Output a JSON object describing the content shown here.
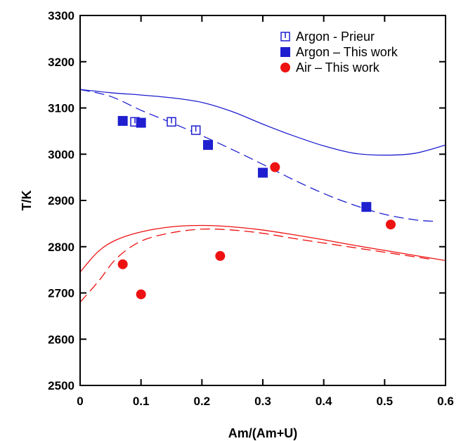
{
  "chart_data": {
    "type": "scatter",
    "xlabel": "Am/(Am+U)",
    "ylabel": "T/K",
    "xlim": [
      0,
      0.6
    ],
    "ylim": [
      2500,
      3300
    ],
    "x_ticks": [
      "0",
      "0.1",
      "0.2",
      "0.3",
      "0.4",
      "0.5",
      "0.6"
    ],
    "y_ticks": [
      "2500",
      "2600",
      "2700",
      "2800",
      "2900",
      "3000",
      "3100",
      "3200",
      "3300"
    ],
    "grid": false,
    "legend_position": "top-right",
    "colors": {
      "blue": "#1f1fd0",
      "red": "#ee1111",
      "axis": "#000000"
    },
    "series": [
      {
        "name": "Argon - Prieur",
        "marker": "open-square",
        "color": "#1f1fd0",
        "x": [
          0.09,
          0.15,
          0.19
        ],
        "y": [
          3070,
          3070,
          3052
        ]
      },
      {
        "name": "Argon – This work",
        "marker": "filled-square",
        "color": "#1f1fd0",
        "x": [
          0.07,
          0.1,
          0.21,
          0.3,
          0.47
        ],
        "y": [
          3072,
          3068,
          3020,
          2960,
          2886
        ]
      },
      {
        "name": "Air – This work",
        "marker": "filled-circle",
        "color": "#ee1111",
        "x": [
          0.07,
          0.1,
          0.23,
          0.32,
          0.51
        ],
        "y": [
          2762,
          2697,
          2780,
          2972,
          2848
        ]
      }
    ],
    "curves": [
      {
        "style": "solid",
        "color": "#1f1fd0",
        "x": [
          0,
          0.05,
          0.1,
          0.15,
          0.2,
          0.25,
          0.3,
          0.35,
          0.4,
          0.45,
          0.5,
          0.55,
          0.6
        ],
        "y": [
          3140,
          3133,
          3128,
          3122,
          3112,
          3092,
          3065,
          3040,
          3018,
          3002,
          2998,
          3002,
          3020
        ]
      },
      {
        "style": "dashed",
        "color": "#1f1fd0",
        "x": [
          0,
          0.05,
          0.1,
          0.15,
          0.2,
          0.25,
          0.3,
          0.35,
          0.4,
          0.45,
          0.5,
          0.55,
          0.58
        ],
        "y": [
          3140,
          3125,
          3095,
          3068,
          3040,
          3010,
          2978,
          2945,
          2915,
          2890,
          2870,
          2858,
          2855
        ]
      },
      {
        "style": "solid",
        "color": "#ee1111",
        "x": [
          0,
          0.03,
          0.06,
          0.1,
          0.15,
          0.2,
          0.25,
          0.3,
          0.35,
          0.4,
          0.45,
          0.5,
          0.55,
          0.6
        ],
        "y": [
          2745,
          2790,
          2815,
          2832,
          2843,
          2846,
          2843,
          2836,
          2826,
          2815,
          2803,
          2792,
          2781,
          2770
        ]
      },
      {
        "style": "dashed",
        "color": "#ee1111",
        "x": [
          0,
          0.03,
          0.06,
          0.1,
          0.15,
          0.2,
          0.25,
          0.3,
          0.35,
          0.4,
          0.45,
          0.5,
          0.55,
          0.58
        ],
        "y": [
          2680,
          2725,
          2775,
          2812,
          2830,
          2838,
          2836,
          2829,
          2818,
          2808,
          2798,
          2788,
          2778,
          2772
        ]
      }
    ]
  }
}
